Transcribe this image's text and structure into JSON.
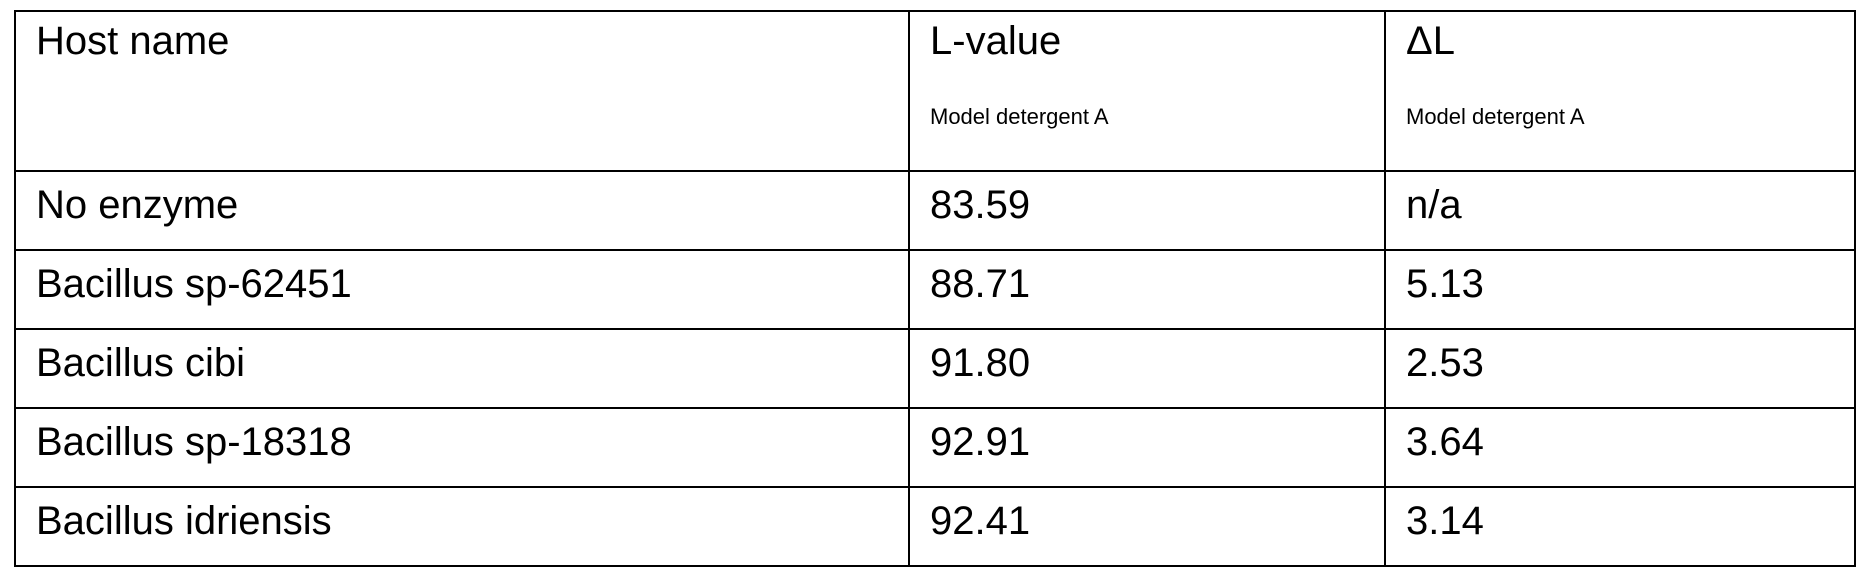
{
  "table": {
    "headers": [
      {
        "label": "Host name",
        "sublabel": ""
      },
      {
        "label": "L-value",
        "sublabel": "Model detergent A"
      },
      {
        "label": "ΔL",
        "sublabel": "Model detergent A"
      }
    ],
    "rows": [
      [
        "No enzyme",
        "83.59",
        "n/a"
      ],
      [
        "Bacillus sp-62451",
        "88.71",
        "5.13"
      ],
      [
        "Bacillus cibi",
        "91.80",
        "2.53"
      ],
      [
        "Bacillus sp-18318",
        "92.91",
        "3.64"
      ],
      [
        "Bacillus idriensis",
        "92.41",
        "3.14"
      ]
    ]
  }
}
